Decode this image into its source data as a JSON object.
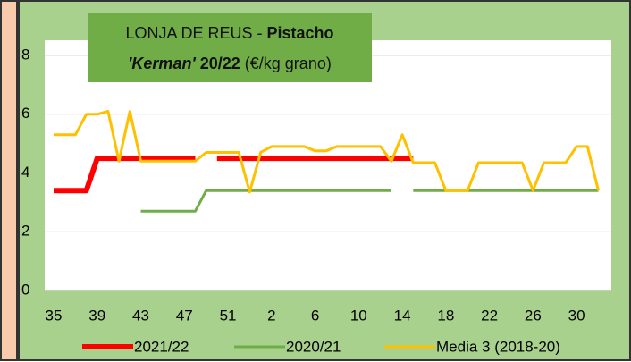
{
  "chart_data": {
    "type": "line",
    "title_parts": [
      "LONJA DE REUS - ",
      "Pistacho ",
      "'Kerman'",
      " 20/22",
      " (€/kg grano)"
    ],
    "categories": [
      "35",
      null,
      null,
      null,
      "39",
      null,
      null,
      null,
      "43",
      null,
      null,
      null,
      "47",
      null,
      null,
      null,
      "51",
      null,
      null,
      null,
      "2",
      null,
      null,
      null,
      "6",
      null,
      null,
      null,
      "10",
      null,
      null,
      null,
      "14",
      null,
      null,
      null,
      "18",
      null,
      null,
      null,
      "22",
      null,
      null,
      null,
      "26",
      null,
      null,
      null,
      "30",
      null,
      null
    ],
    "ylim": [
      0,
      8
    ],
    "yticks": [
      0,
      2,
      4,
      6,
      8
    ],
    "grid": true,
    "legend": "bottom",
    "series": [
      {
        "name": "2021/22",
        "color": "#ff0000",
        "width": 6,
        "values": [
          3.4,
          3.4,
          3.4,
          3.4,
          4.5,
          4.5,
          4.5,
          4.5,
          4.5,
          4.5,
          4.5,
          4.5,
          4.5,
          4.5,
          null,
          4.5,
          4.5,
          4.5,
          4.5,
          4.5,
          4.5,
          4.5,
          4.5,
          4.5,
          4.5,
          4.5,
          4.5,
          4.5,
          4.5,
          4.5,
          4.5,
          4.5,
          4.5,
          4.5,
          null,
          null,
          null,
          null,
          null,
          null,
          null,
          null,
          null,
          null,
          null,
          null,
          null,
          null,
          null,
          null,
          null
        ]
      },
      {
        "name": "2020/21",
        "color": "#70ad47",
        "width": 3,
        "values": [
          null,
          null,
          null,
          null,
          null,
          null,
          null,
          null,
          2.7,
          2.7,
          2.7,
          2.7,
          2.7,
          2.7,
          3.4,
          3.4,
          3.4,
          3.4,
          3.4,
          3.4,
          3.4,
          3.4,
          3.4,
          3.4,
          3.4,
          3.4,
          3.4,
          3.4,
          3.4,
          3.4,
          3.4,
          3.4,
          null,
          3.4,
          3.4,
          3.4,
          3.4,
          3.4,
          3.4,
          3.4,
          3.4,
          3.4,
          3.4,
          3.4,
          3.4,
          3.4,
          3.4,
          3.4,
          3.4,
          3.4,
          3.4
        ]
      },
      {
        "name": "Media 3 (2018-20)",
        "color": "#ffc000",
        "width": 3,
        "values": [
          5.3,
          5.3,
          5.3,
          6.0,
          6.0,
          6.1,
          4.4,
          6.1,
          4.4,
          4.4,
          4.4,
          4.4,
          4.4,
          4.4,
          4.7,
          4.7,
          4.7,
          4.7,
          3.35,
          4.7,
          4.9,
          4.9,
          4.9,
          4.9,
          4.75,
          4.75,
          4.9,
          4.9,
          4.9,
          4.9,
          4.9,
          4.4,
          5.3,
          4.35,
          4.35,
          4.35,
          3.4,
          3.4,
          3.4,
          4.35,
          4.35,
          4.35,
          4.35,
          4.35,
          3.4,
          4.35,
          4.35,
          4.35,
          4.9,
          4.9,
          3.4
        ]
      }
    ]
  }
}
